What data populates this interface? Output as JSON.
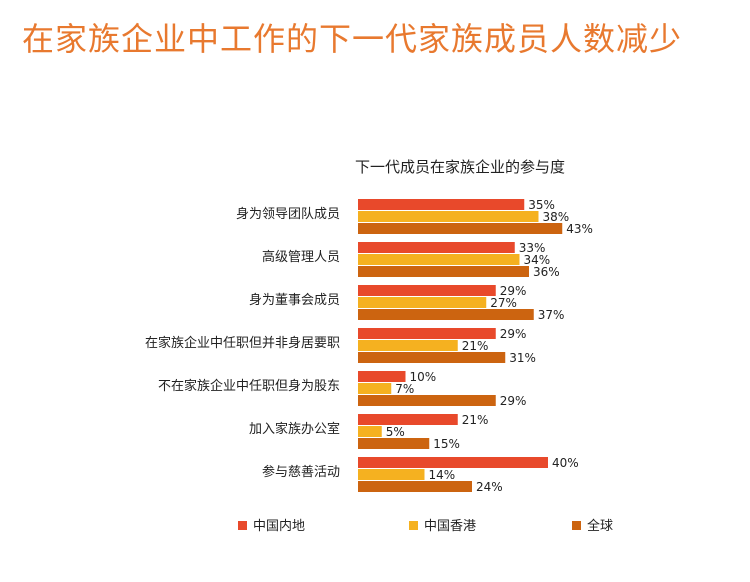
{
  "page": {
    "title": "在家族企业中工作的下一代家族成员人数减少"
  },
  "chart_data": {
    "type": "bar",
    "orientation": "horizontal",
    "title": "下一代成员在家族企业的参与度",
    "xlabel": "",
    "ylabel": "",
    "xlim": [
      0,
      45
    ],
    "grid": false,
    "legend_position": "bottom",
    "categories": [
      "身为领导团队成员",
      "高级管理人员",
      "身为董事会成员",
      "在家族企业中任职但并非身居要职",
      "不在家族企业中任职但身为股东",
      "加入家族办公室",
      "参与慈善活动"
    ],
    "series": [
      {
        "name": "中国内地",
        "color": "#e8492b",
        "values": [
          35,
          33,
          29,
          29,
          10,
          21,
          40
        ],
        "labels": [
          "35%",
          "33%",
          "29%",
          "29%",
          "10%",
          "21%",
          "40%"
        ]
      },
      {
        "name": "中国香港",
        "color": "#f5b120",
        "values": [
          38,
          34,
          27,
          21,
          7,
          5,
          14
        ],
        "labels": [
          "38%",
          "34%",
          "27%",
          "21%",
          "7%",
          "5%",
          "14%"
        ]
      },
      {
        "name": "全球",
        "color": "#cc6410",
        "values": [
          43,
          36,
          37,
          31,
          29,
          15,
          24
        ],
        "labels": [
          "43%",
          "36%",
          "37%",
          "31%",
          "29%",
          "15%",
          "24%"
        ]
      }
    ]
  }
}
